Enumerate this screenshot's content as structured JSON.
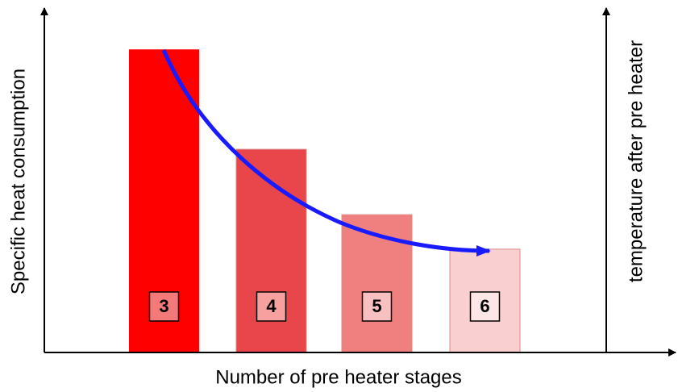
{
  "chart_data": {
    "type": "bar",
    "categories": [
      "3",
      "4",
      "5",
      "6"
    ],
    "values": [
      88,
      59,
      40,
      30
    ],
    "colors": [
      "#ff0000",
      "#e8464a",
      "#f08080",
      "#f9cfd0"
    ],
    "label_box_colors": [
      "#f47a7a",
      "#f6a0a0",
      "#f8c0c0",
      "#fde6e6"
    ],
    "ylim": [
      0,
      100
    ],
    "x_label": "Number of pre heater stages",
    "y_label": "Specific heat consumption",
    "y2_label": "temperature after pre heater"
  }
}
